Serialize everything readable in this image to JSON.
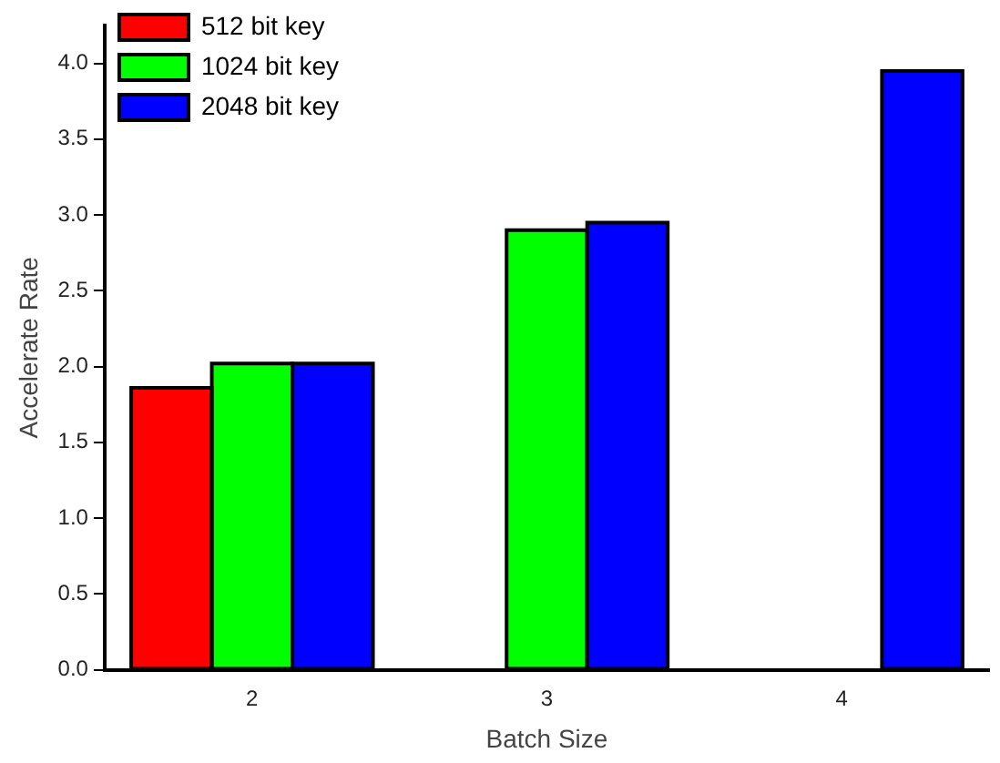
{
  "chart_data": {
    "type": "bar",
    "xlabel": "Batch Size",
    "ylabel": "Accelerate Rate",
    "categories": [
      "2",
      "3",
      "4"
    ],
    "series": [
      {
        "name": "512 bit key",
        "color": "#ff0000",
        "values": [
          1.86,
          null,
          null
        ]
      },
      {
        "name": "1024 bit key",
        "color": "#00ff00",
        "values": [
          2.02,
          2.9,
          null
        ]
      },
      {
        "name": "2048 bit key",
        "color": "#0000ff",
        "values": [
          2.02,
          2.95,
          3.95
        ]
      }
    ],
    "ylim": [
      0,
      4.25
    ],
    "yticks": [
      {
        "value": 0,
        "label": "0.0"
      },
      {
        "value": 0.5,
        "label": "0.5"
      },
      {
        "value": 1,
        "label": "1.0"
      },
      {
        "value": 1.5,
        "label": "1.5"
      },
      {
        "value": 2,
        "label": "2.0"
      },
      {
        "value": 2.5,
        "label": "2.5"
      },
      {
        "value": 3,
        "label": "3.0"
      },
      {
        "value": 3.5,
        "label": "3.5"
      },
      {
        "value": 4,
        "label": "4.0"
      }
    ],
    "grid": false,
    "legend": "top left"
  }
}
